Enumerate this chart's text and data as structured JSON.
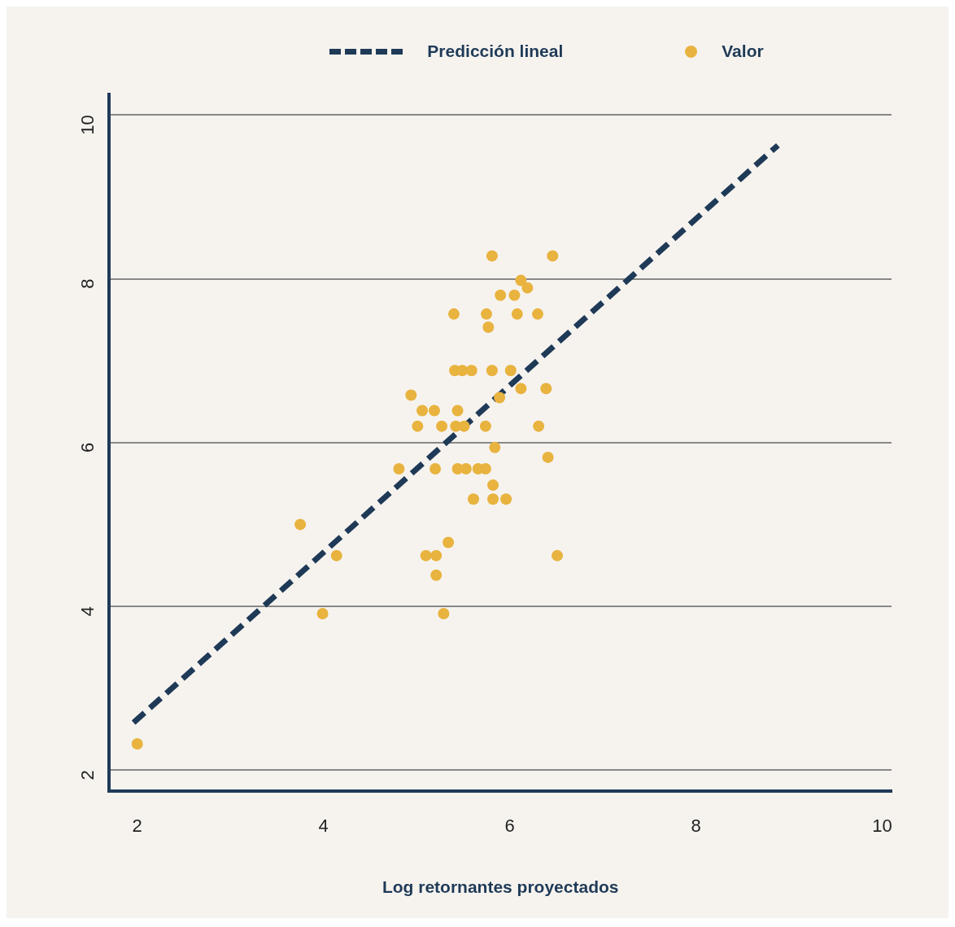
{
  "chart_data": {
    "type": "scatter",
    "xlabel": "Log retornantes proyectados",
    "xlim": [
      1.7,
      10.1
    ],
    "xticks": [
      2,
      4,
      6,
      8,
      10
    ],
    "ylim": [
      1.74,
      10.25
    ],
    "yticks": [
      2,
      4,
      6,
      8,
      10
    ],
    "grid": "y",
    "legend": "top",
    "series": [
      {
        "name": "Predicción lineal",
        "type": "line",
        "color": "#1f3a57",
        "line_style": "dashed",
        "marker": "none",
        "x": [
          1.96,
          8.88
        ],
        "values": [
          2.58,
          9.63
        ]
      },
      {
        "name": "Valor",
        "type": "scatter",
        "color": "#e8b33e",
        "marker": "circle",
        "x": [
          2.0,
          3.75,
          4.14,
          3.99,
          4.81,
          4.94,
          5.01,
          5.06,
          5.19,
          5.27,
          5.2,
          5.1,
          5.21,
          5.21,
          5.34,
          5.29,
          5.4,
          5.41,
          5.49,
          5.59,
          5.44,
          5.42,
          5.51,
          5.44,
          5.53,
          5.61,
          5.66,
          5.74,
          5.74,
          5.75,
          5.77,
          5.81,
          5.81,
          5.82,
          5.82,
          5.84,
          5.89,
          5.9,
          5.96,
          6.01,
          6.05,
          6.08,
          6.12,
          6.12,
          6.19,
          6.3,
          6.31,
          6.39,
          6.41,
          6.46,
          6.51
        ],
        "values": [
          2.32,
          5.0,
          4.62,
          3.91,
          5.68,
          6.58,
          6.2,
          6.39,
          6.39,
          6.2,
          5.68,
          4.62,
          4.62,
          4.38,
          4.78,
          3.91,
          7.57,
          6.88,
          6.88,
          6.88,
          6.39,
          6.2,
          6.2,
          5.68,
          5.68,
          5.31,
          5.68,
          5.68,
          6.2,
          7.57,
          7.41,
          6.88,
          8.28,
          5.48,
          5.31,
          5.94,
          6.55,
          7.8,
          5.31,
          6.88,
          7.8,
          7.57,
          7.98,
          6.66,
          7.89,
          7.57,
          6.2,
          6.66,
          5.82,
          8.28,
          4.62
        ]
      }
    ]
  }
}
